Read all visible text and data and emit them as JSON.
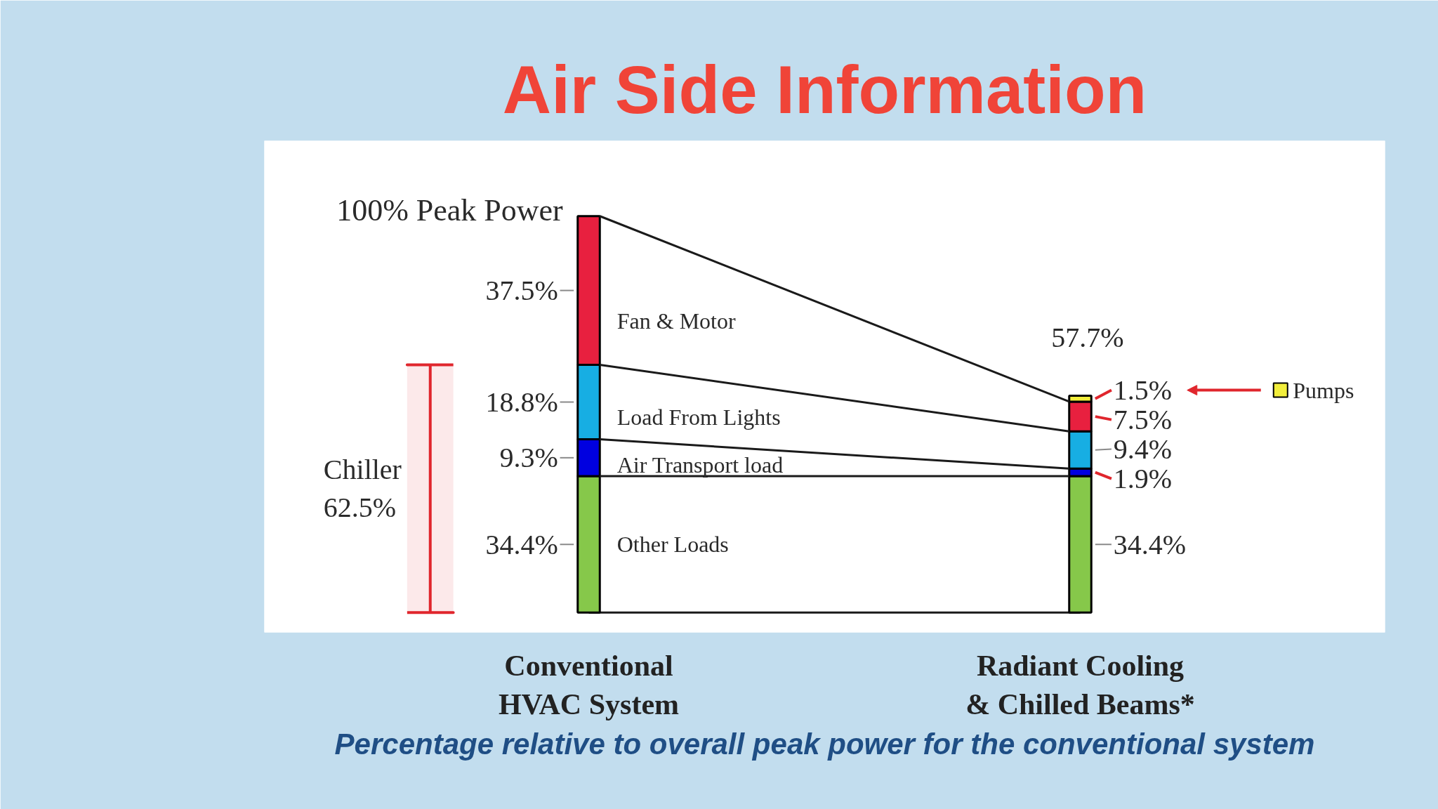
{
  "chart_data": {
    "type": "bar",
    "stacked": true,
    "title": "Air Side Information",
    "categories": [
      "Conventional HVAC System",
      "Radiant Cooling & Chilled Beams*"
    ],
    "series": [
      {
        "name": "Other Loads",
        "color": "#86c84a",
        "values": [
          34.4,
          34.4
        ],
        "value_labels": [
          "34.4%",
          "34.4%"
        ]
      },
      {
        "name": "Air Transport load",
        "color": "#0000e0",
        "values": [
          9.3,
          1.9
        ],
        "value_labels": [
          "9.3%",
          "1.9%"
        ]
      },
      {
        "name": "Load From Lights",
        "color": "#17aee3",
        "values": [
          18.8,
          9.4
        ],
        "value_labels": [
          "18.8%",
          "9.4%"
        ]
      },
      {
        "name": "Fan & Motor",
        "color": "#e8203f",
        "values": [
          37.5,
          7.5
        ],
        "value_labels": [
          "37.5%",
          "7.5%"
        ]
      },
      {
        "name": "Pumps",
        "color": "#f2ee3c",
        "values": [
          null,
          1.5
        ],
        "value_labels": [
          null,
          "1.5%"
        ]
      }
    ],
    "totals": [
      "100% Peak Power",
      null
    ],
    "ref_lines": [
      {
        "axis": "y",
        "value": 0
      }
    ],
    "bands": [
      {
        "axis": "y",
        "from": 0,
        "to": 62.5,
        "label": "Chiller 62.5%",
        "color": "#e0262d"
      }
    ],
    "annotations": [
      "57.7%",
      "Percentage relative to overall peak power for the conventional system"
    ]
  }
}
